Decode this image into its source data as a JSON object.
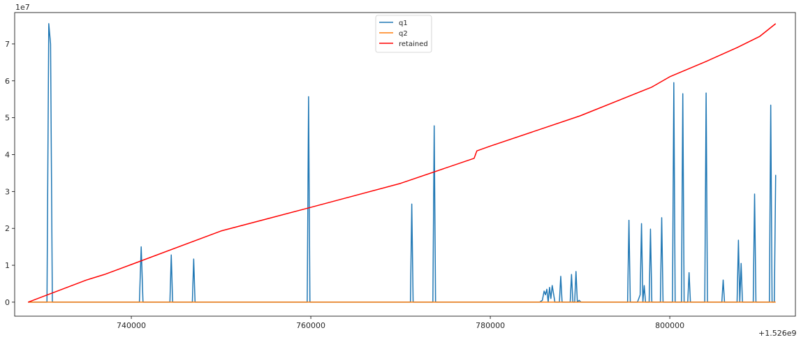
{
  "chart_data": {
    "type": "line",
    "title": "",
    "xlabel": "",
    "ylabel": "",
    "x_offset_label": "+1.526e9",
    "y_multiplier_label": "1e7",
    "xlim": [
      1526727000,
      1526814000
    ],
    "ylim": [
      -0.38,
      7.85
    ],
    "x_ticks": [
      1526740000,
      1526760000,
      1526780000,
      1526800000
    ],
    "x_tick_labels": [
      "740000",
      "760000",
      "780000",
      "800000"
    ],
    "y_ticks": [
      0,
      1,
      2,
      3,
      4,
      5,
      6,
      7
    ],
    "y_tick_labels": [
      "0",
      "1",
      "2",
      "3",
      "4",
      "5",
      "6",
      "7"
    ],
    "grid": false,
    "legend_position": "top-center",
    "series": [
      {
        "name": "q1",
        "color": "#1f77b4",
        "x": [
          1526728500,
          1526730600,
          1526730800,
          1526731000,
          1526731200,
          1526740900,
          1526741100,
          1526741300,
          1526744300,
          1526744450,
          1526744600,
          1526746800,
          1526746950,
          1526747100,
          1526759600,
          1526759750,
          1526759900,
          1526771100,
          1526771250,
          1526771400,
          1526773600,
          1526773750,
          1526773900,
          1526785500,
          1526785800,
          1526786000,
          1526786150,
          1526786300,
          1526786450,
          1526786600,
          1526786750,
          1526786900,
          1526787200,
          1526787700,
          1526787850,
          1526788000,
          1526788300,
          1526788900,
          1526789050,
          1526789200,
          1526789400,
          1526789550,
          1526789700,
          1526789900,
          1526790100,
          1526795300,
          1526795450,
          1526795600,
          1526796400,
          1526796700,
          1526796850,
          1526797000,
          1526797150,
          1526797300,
          1526797700,
          1526797850,
          1526798000,
          1526798950,
          1526799100,
          1526799250,
          1526800300,
          1526800450,
          1526800600,
          1526801300,
          1526801450,
          1526801600,
          1526802000,
          1526802150,
          1526802300,
          1526803900,
          1526804050,
          1526804200,
          1526805800,
          1526805950,
          1526806100,
          1526807500,
          1526807650,
          1526807800,
          1526807950,
          1526808100,
          1526809300,
          1526809450,
          1526809600,
          1526811100,
          1526811250,
          1526811400,
          1526811650,
          1526811800
        ],
        "y": [
          0,
          0,
          7.55,
          7.0,
          0,
          0,
          1.5,
          0,
          0,
          1.28,
          0,
          0,
          1.17,
          0,
          0,
          5.57,
          0,
          0,
          2.66,
          0,
          0,
          4.78,
          0,
          0,
          0.05,
          0.3,
          0.2,
          0.35,
          0,
          0.4,
          0.1,
          0.45,
          0,
          0,
          0.7,
          0,
          0,
          0,
          0.75,
          0,
          0,
          0.83,
          0,
          0.05,
          0,
          0,
          2.22,
          0,
          0,
          0.2,
          2.13,
          0,
          0.45,
          0,
          0,
          1.98,
          0,
          0,
          2.29,
          0,
          0,
          5.95,
          0,
          0,
          5.65,
          0,
          0,
          0.8,
          0,
          0,
          5.67,
          0,
          0,
          0.6,
          0,
          0,
          1.68,
          0,
          1.05,
          0,
          0,
          2.93,
          0,
          0,
          5.34,
          0,
          0,
          3.45
        ]
      },
      {
        "name": "q2",
        "color": "#ff7f0e",
        "x": [
          1526728500,
          1526811800
        ],
        "y": [
          0,
          0
        ]
      },
      {
        "name": "retained",
        "color": "#ff0000",
        "x": [
          1526728500,
          1526735000,
          1526737000,
          1526740000,
          1526750000,
          1526760000,
          1526770000,
          1526778200,
          1526778500,
          1526780000,
          1526790000,
          1526798000,
          1526800000,
          1526804000,
          1526807500,
          1526810000,
          1526811800
        ],
        "y": [
          0,
          0.6,
          0.75,
          1.02,
          1.93,
          2.57,
          3.22,
          3.9,
          4.1,
          4.23,
          5.05,
          5.83,
          6.11,
          6.52,
          6.9,
          7.2,
          7.55
        ]
      }
    ]
  }
}
